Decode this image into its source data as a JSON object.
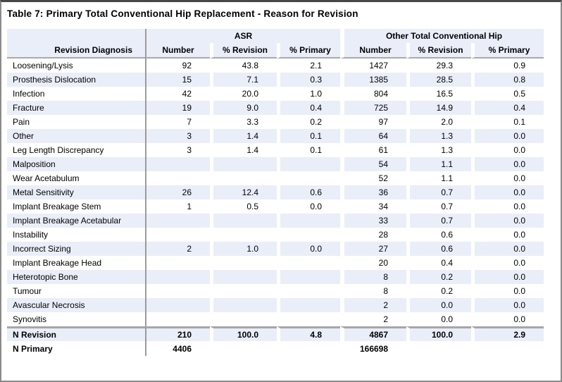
{
  "title": "Table 7: Primary Total Conventional Hip Replacement - Reason for Revision",
  "colors": {
    "header_band": "#e9eef8",
    "row_band": "#e9eef8",
    "vertical_divider": "#9b9b9b",
    "rule_gray": "#a6a6a6",
    "frame": "#8a8a8a",
    "text": "#000000"
  },
  "table": {
    "group_headers": [
      {
        "label": "ASR",
        "colspan": 3
      },
      {
        "label": "Other Total Conventional Hip",
        "colspan": 3
      }
    ],
    "column_headers": [
      "Revision Diagnosis",
      "Number",
      "% Revision",
      "% Primary",
      "Number",
      "% Revision",
      "% Primary"
    ],
    "rows": [
      {
        "label": "Loosening/Lysis",
        "values": [
          "92",
          "43.8",
          "2.1",
          "1427",
          "29.3",
          "0.9"
        ]
      },
      {
        "label": "Prosthesis Dislocation",
        "values": [
          "15",
          "7.1",
          "0.3",
          "1385",
          "28.5",
          "0.8"
        ]
      },
      {
        "label": "Infection",
        "values": [
          "42",
          "20.0",
          "1.0",
          "804",
          "16.5",
          "0.5"
        ]
      },
      {
        "label": "Fracture",
        "values": [
          "19",
          "9.0",
          "0.4",
          "725",
          "14.9",
          "0.4"
        ]
      },
      {
        "label": "Pain",
        "values": [
          "7",
          "3.3",
          "0.2",
          "97",
          "2.0",
          "0.1"
        ]
      },
      {
        "label": "Other",
        "values": [
          "3",
          "1.4",
          "0.1",
          "64",
          "1.3",
          "0.0"
        ]
      },
      {
        "label": "Leg Length Discrepancy",
        "values": [
          "3",
          "1.4",
          "0.1",
          "61",
          "1.3",
          "0.0"
        ]
      },
      {
        "label": "Malposition",
        "values": [
          "",
          "",
          "",
          "54",
          "1.1",
          "0.0"
        ]
      },
      {
        "label": "Wear Acetabulum",
        "values": [
          "",
          "",
          "",
          "52",
          "1.1",
          "0.0"
        ]
      },
      {
        "label": "Metal Sensitivity",
        "values": [
          "26",
          "12.4",
          "0.6",
          "36",
          "0.7",
          "0.0"
        ]
      },
      {
        "label": "Implant Breakage Stem",
        "values": [
          "1",
          "0.5",
          "0.0",
          "34",
          "0.7",
          "0.0"
        ]
      },
      {
        "label": "Implant Breakage Acetabular",
        "values": [
          "",
          "",
          "",
          "33",
          "0.7",
          "0.0"
        ]
      },
      {
        "label": "Instability",
        "values": [
          "",
          "",
          "",
          "28",
          "0.6",
          "0.0"
        ]
      },
      {
        "label": "Incorrect Sizing",
        "values": [
          "2",
          "1.0",
          "0.0",
          "27",
          "0.6",
          "0.0"
        ]
      },
      {
        "label": "Implant Breakage Head",
        "values": [
          "",
          "",
          "",
          "20",
          "0.4",
          "0.0"
        ]
      },
      {
        "label": "Heterotopic Bone",
        "values": [
          "",
          "",
          "",
          "8",
          "0.2",
          "0.0"
        ]
      },
      {
        "label": "Tumour",
        "values": [
          "",
          "",
          "",
          "8",
          "0.2",
          "0.0"
        ]
      },
      {
        "label": "Avascular Necrosis",
        "values": [
          "",
          "",
          "",
          "2",
          "0.0",
          "0.0"
        ]
      },
      {
        "label": "Synovitis",
        "values": [
          "",
          "",
          "",
          "2",
          "0.0",
          "0.0"
        ]
      }
    ],
    "footer_rows": [
      {
        "label": "N Revision",
        "values": [
          "210",
          "100.0",
          "4.8",
          "4867",
          "100.0",
          "2.9"
        ]
      },
      {
        "label": "N Primary",
        "values": [
          "4406",
          "",
          "",
          "166698",
          "",
          ""
        ]
      }
    ]
  }
}
